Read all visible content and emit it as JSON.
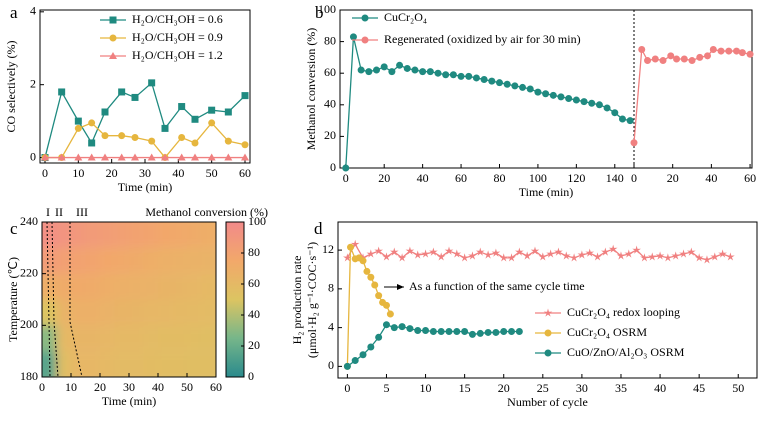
{
  "chart_data": [
    {
      "panel": "a",
      "type": "line",
      "x_label": "Time (min)",
      "y_label": "CO selectively (%)",
      "xlim": [
        -1.5,
        61.5
      ],
      "ylim": [
        -0.15,
        4.05
      ],
      "xticks": [
        0,
        10,
        20,
        30,
        40,
        50,
        60
      ],
      "yticks": [
        0,
        2,
        4
      ],
      "legend": "upper right",
      "series": [
        {
          "name": "H₂O/CH₃OH = 0.6",
          "color": "#1f8a80",
          "marker": "square",
          "x": [
            0,
            5,
            10,
            14,
            18,
            23,
            27,
            32,
            36,
            41,
            45,
            50,
            55,
            60
          ],
          "values": [
            0,
            1.8,
            1.0,
            0.4,
            1.25,
            1.8,
            1.65,
            2.05,
            0.8,
            1.4,
            1.05,
            1.3,
            1.25,
            1.7
          ]
        },
        {
          "name": "H₂O/CH₃OH = 0.9",
          "color": "#e6b63e",
          "marker": "circle",
          "x": [
            0,
            5,
            10,
            14,
            18,
            23,
            27,
            32,
            36,
            41,
            45,
            50,
            55,
            60
          ],
          "values": [
            0,
            0,
            0.8,
            0.95,
            0.6,
            0.6,
            0.55,
            0.45,
            0,
            0.55,
            0.4,
            0.95,
            0.45,
            0.35
          ]
        },
        {
          "name": "H₂O/CH₃OH = 1.2",
          "color": "#f08080",
          "marker": "triangle",
          "x": [
            0,
            5,
            10,
            14,
            18,
            23,
            27,
            32,
            36,
            41,
            45,
            50,
            55,
            60
          ],
          "values": [
            0,
            0,
            0,
            0,
            0,
            0,
            0,
            0,
            0,
            0,
            0,
            0,
            0,
            0
          ]
        }
      ]
    },
    {
      "panel": "b",
      "type": "line",
      "x_label": "Time (min)",
      "y_label": "Methanol conversion (%)",
      "xlim": [
        -3,
        150
      ],
      "x2lim": [
        0,
        61
      ],
      "ylim": [
        0,
        100
      ],
      "xticks": [
        0,
        20,
        40,
        60,
        80,
        100,
        120,
        140
      ],
      "x2ticks": [
        0,
        20,
        40,
        60
      ],
      "yticks": [
        0,
        20,
        40,
        60,
        80,
        100
      ],
      "legend": "upper left",
      "series": [
        {
          "name": "CuCr₂O₄",
          "color": "#1f8a80",
          "marker": "circle",
          "x": [
            0,
            4,
            8,
            12,
            16,
            20,
            24,
            28,
            32,
            36,
            40,
            44,
            48,
            52,
            56,
            60,
            64,
            68,
            72,
            76,
            80,
            84,
            88,
            92,
            96,
            100,
            104,
            108,
            112,
            116,
            120,
            124,
            128,
            132,
            136,
            140,
            144,
            148
          ],
          "values": [
            0,
            83,
            62,
            61,
            62,
            64,
            61,
            65,
            63,
            62,
            61,
            61,
            60,
            59,
            59,
            58,
            58,
            57,
            56,
            55,
            54,
            53,
            52,
            51,
            50,
            48,
            47,
            46,
            45,
            44,
            43,
            42,
            41,
            40,
            38,
            35,
            31,
            30
          ]
        },
        {
          "name": "Regenerated (oxidized by air for 30 min)",
          "color": "#f08080",
          "marker": "circle",
          "axis": "x2",
          "x": [
            0,
            4,
            7,
            11,
            15,
            19,
            22,
            26,
            30,
            34,
            38,
            41,
            45,
            49,
            53,
            56,
            60
          ],
          "values": [
            16,
            75,
            68,
            69,
            68,
            71,
            69,
            69,
            68,
            70,
            71,
            75,
            74,
            74,
            74,
            73,
            72
          ]
        }
      ]
    },
    {
      "panel": "c",
      "type": "heatmap",
      "title": "Methanol conversion (%)",
      "x_label": "Time (min)",
      "y_label": "Temperature (℃)",
      "xlim": [
        0,
        60
      ],
      "ylim": [
        180,
        240
      ],
      "xticks": [
        0,
        10,
        20,
        30,
        40,
        50,
        60
      ],
      "yticks": [
        180,
        200,
        220,
        240
      ],
      "zlim": [
        0,
        100
      ],
      "zticks": [
        0,
        20,
        40,
        60,
        80,
        100
      ],
      "colorscale": [
        "#2a8a8c",
        "#76b68a",
        "#dcc462",
        "#f2a86a",
        "#f28a8a"
      ],
      "phase_labels": [
        "I",
        "II",
        "III"
      ],
      "x": [
        2.5,
        7.5,
        12.5,
        17.5,
        22.5,
        27.5,
        32.5,
        37.5,
        42.5,
        47.5,
        52.5,
        57.5
      ],
      "y": [
        185,
        195,
        205,
        215,
        225,
        235
      ],
      "values": [
        [
          15,
          55,
          62,
          62,
          60,
          58,
          58,
          57,
          56,
          56,
          55,
          55
        ],
        [
          30,
          60,
          63,
          63,
          62,
          60,
          60,
          58,
          57,
          57,
          56,
          55
        ],
        [
          50,
          65,
          68,
          68,
          66,
          64,
          63,
          62,
          61,
          60,
          59,
          58
        ],
        [
          70,
          72,
          73,
          72,
          70,
          68,
          67,
          66,
          64,
          63,
          62,
          60
        ],
        [
          85,
          82,
          80,
          78,
          76,
          74,
          72,
          70,
          68,
          67,
          66,
          65
        ],
        [
          95,
          92,
          88,
          86,
          84,
          82,
          80,
          78,
          76,
          74,
          72,
          70
        ]
      ]
    },
    {
      "panel": "d",
      "type": "line",
      "x_label": "Number of cycle",
      "y_label": [
        "H₂ production rate",
        "(μmol·H₂ g⁻¹·COC·s⁻¹)"
      ],
      "annotation": "As a function of the same cycle time",
      "xlim": [
        -1.2,
        52.4
      ],
      "ylim": [
        -1.2,
        14.9
      ],
      "xticks": [
        0,
        5,
        10,
        15,
        20,
        25,
        30,
        35,
        40,
        45,
        50
      ],
      "yticks": [
        0,
        4,
        8,
        12
      ],
      "legend": "lower right",
      "series": [
        {
          "name": "CuCr₂O₄ redox looping",
          "color": "#f08080",
          "marker": "star",
          "x": [
            0,
            1,
            2,
            3,
            4,
            5,
            6,
            7,
            8,
            9,
            10,
            11,
            12,
            13,
            14,
            15,
            16,
            17,
            18,
            19,
            20,
            21,
            22,
            23,
            24,
            25,
            26,
            27,
            28,
            29,
            30,
            31,
            32,
            33,
            34,
            35,
            36,
            37,
            38,
            39,
            40,
            41,
            42,
            43,
            44,
            45,
            46,
            47,
            48,
            49
          ],
          "values": [
            11.2,
            12.6,
            11.2,
            11.6,
            11.9,
            11.3,
            11.8,
            11.2,
            11.9,
            11.5,
            11.6,
            11.8,
            11.3,
            11.9,
            11.6,
            11.2,
            11.4,
            11.8,
            11.5,
            11.7,
            11.2,
            11.2,
            11.8,
            11.4,
            11.9,
            11.3,
            11.6,
            11.8,
            11.4,
            11.2,
            11.5,
            11.7,
            11.3,
            11.8,
            12.1,
            11.4,
            11.6,
            12.0,
            11.2,
            11.3,
            11.4,
            11.2,
            11.4,
            11.6,
            11.8,
            11.2,
            11.0,
            11.3,
            11.6,
            11.3
          ]
        },
        {
          "name": "CuCr₂O₄ OSRM",
          "color": "#e6b63e",
          "marker": "circle",
          "x": [
            0,
            0.4,
            1,
            1.5,
            2,
            2.5,
            3,
            3.5,
            4,
            4.5,
            5,
            5.5
          ],
          "values": [
            0,
            12.3,
            11.1,
            11.2,
            10.9,
            9.8,
            9.2,
            8.4,
            7.3,
            6.6,
            6.3,
            5.4
          ]
        },
        {
          "name": "CuO/ZnO/Al₂O₃ OSRM",
          "color": "#1f8a80",
          "marker": "circle",
          "x": [
            0,
            1,
            2,
            3,
            4,
            5,
            6,
            7,
            8,
            9,
            10,
            11,
            12,
            13,
            14,
            15,
            16,
            17,
            18,
            19,
            20,
            21,
            22
          ],
          "values": [
            0,
            0.6,
            1.2,
            2.0,
            3.0,
            4.3,
            4.0,
            4.1,
            3.9,
            3.7,
            3.7,
            3.6,
            3.6,
            3.6,
            3.6,
            3.6,
            3.3,
            3.4,
            3.5,
            3.5,
            3.6,
            3.6,
            3.6
          ]
        }
      ]
    }
  ]
}
